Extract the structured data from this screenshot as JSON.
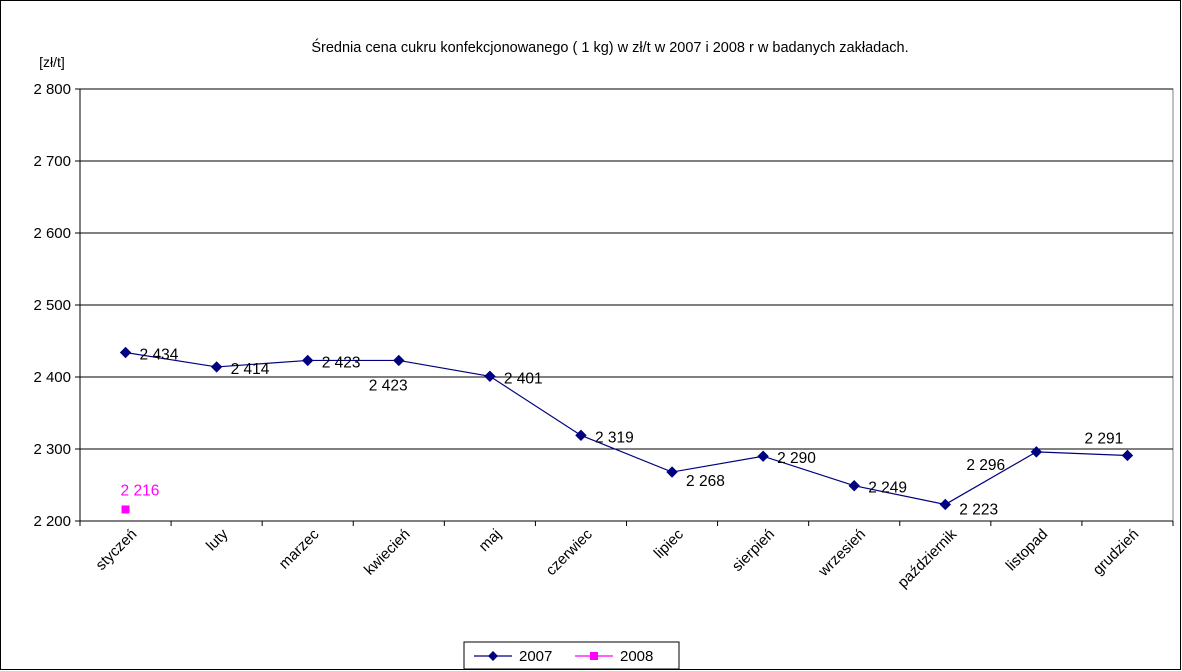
{
  "chart_data": {
    "type": "line",
    "title": "Średnia cena cukru konfekcjonowanego ( 1 kg) w zł/t w 2007 i 2008 r w badanych zakładach.",
    "ylabel": "[zł/t]",
    "xlabel": "",
    "ylim": [
      2200,
      2800
    ],
    "yticks": [
      2200,
      2300,
      2400,
      2500,
      2600,
      2700,
      2800
    ],
    "ytick_labels": [
      "2 200",
      "2 300",
      "2 400",
      "2 500",
      "2 600",
      "2 700",
      "2 800"
    ],
    "categories": [
      "styczeń",
      "luty",
      "marzec",
      "kwiecień",
      "maj",
      "czerwiec",
      "lipiec",
      "sierpień",
      "wrzesień",
      "październik",
      "listopad",
      "grudzień"
    ],
    "grid": "horizontal",
    "legend_position": "bottom",
    "series": [
      {
        "name": "2007",
        "color": "#000080",
        "marker": "diamond",
        "values": [
          2434,
          2414,
          2423,
          2423,
          2401,
          2319,
          2268,
          2290,
          2249,
          2223,
          2296,
          2291
        ],
        "labels": [
          "2 434",
          "2 414",
          "2 423",
          "2 423",
          "2 401",
          "2 319",
          "2 268",
          "2 290",
          "2 249",
          "2 223",
          "2 296",
          "2 291"
        ]
      },
      {
        "name": "2008",
        "color": "#ff00ff",
        "marker": "square",
        "values": [
          2216,
          null,
          null,
          null,
          null,
          null,
          null,
          null,
          null,
          null,
          null,
          null
        ],
        "labels": [
          "2 216",
          null,
          null,
          null,
          null,
          null,
          null,
          null,
          null,
          null,
          null,
          null
        ]
      }
    ]
  }
}
